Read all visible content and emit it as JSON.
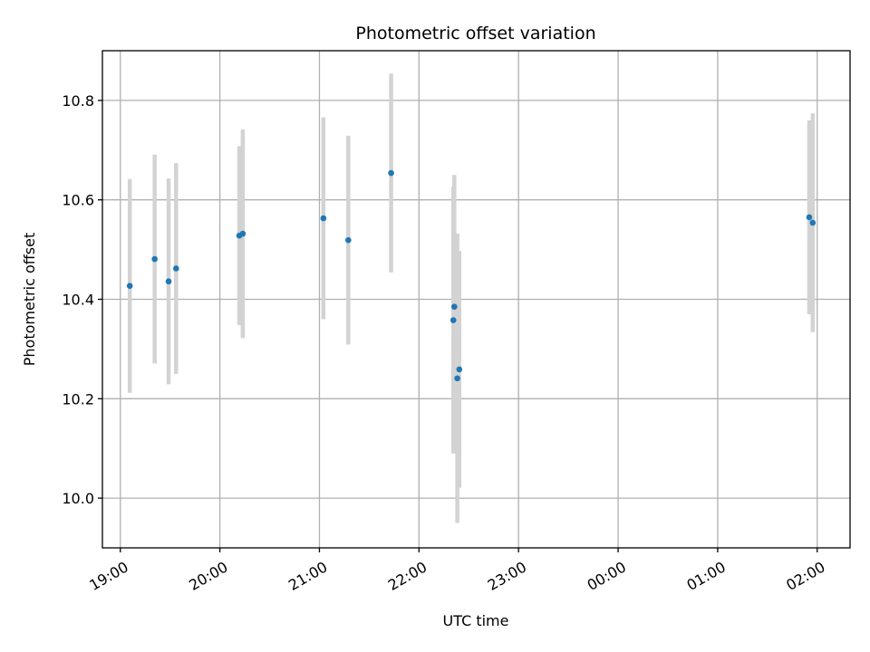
{
  "chart_data": {
    "type": "scatter",
    "title": "Photometric offset variation",
    "xlabel": "UTC time",
    "ylabel": "Photometric offset",
    "x_unit": "hours",
    "xlim": [
      18.82,
      26.33
    ],
    "ylim": [
      9.9,
      10.9
    ],
    "x_ticks": [
      {
        "value": 19,
        "label": "19:00"
      },
      {
        "value": 20,
        "label": "20:00"
      },
      {
        "value": 21,
        "label": "21:00"
      },
      {
        "value": 22,
        "label": "22:00"
      },
      {
        "value": 23,
        "label": "23:00"
      },
      {
        "value": 24,
        "label": "00:00"
      },
      {
        "value": 25,
        "label": "01:00"
      },
      {
        "value": 26,
        "label": "02:00"
      }
    ],
    "y_ticks": [
      {
        "value": 10.0,
        "label": "10.0"
      },
      {
        "value": 10.2,
        "label": "10.2"
      },
      {
        "value": 10.4,
        "label": "10.4"
      },
      {
        "value": 10.6,
        "label": "10.6"
      },
      {
        "value": 10.8,
        "label": "10.8"
      }
    ],
    "grid": true,
    "marker_color": "#1f77b4",
    "errorbar_color": "#d3d3d3",
    "points": [
      {
        "x": 19.095,
        "y": 10.427,
        "yerr": 0.215
      },
      {
        "x": 19.345,
        "y": 10.481,
        "yerr": 0.21
      },
      {
        "x": 19.485,
        "y": 10.436,
        "yerr": 0.207
      },
      {
        "x": 19.56,
        "y": 10.462,
        "yerr": 0.212
      },
      {
        "x": 20.195,
        "y": 10.528,
        "yerr": 0.18
      },
      {
        "x": 20.23,
        "y": 10.532,
        "yerr": 0.21
      },
      {
        "x": 21.04,
        "y": 10.563,
        "yerr": 0.203
      },
      {
        "x": 21.29,
        "y": 10.519,
        "yerr": 0.21
      },
      {
        "x": 21.72,
        "y": 10.654,
        "yerr": 0.2
      },
      {
        "x": 22.345,
        "y": 10.358,
        "yerr": 0.268
      },
      {
        "x": 22.355,
        "y": 10.385,
        "yerr": 0.265
      },
      {
        "x": 22.385,
        "y": 10.241,
        "yerr": 0.291
      },
      {
        "x": 22.405,
        "y": 10.259,
        "yerr": 0.238
      },
      {
        "x": 25.92,
        "y": 10.565,
        "yerr": 0.195
      },
      {
        "x": 25.955,
        "y": 10.554,
        "yerr": 0.22
      }
    ]
  }
}
